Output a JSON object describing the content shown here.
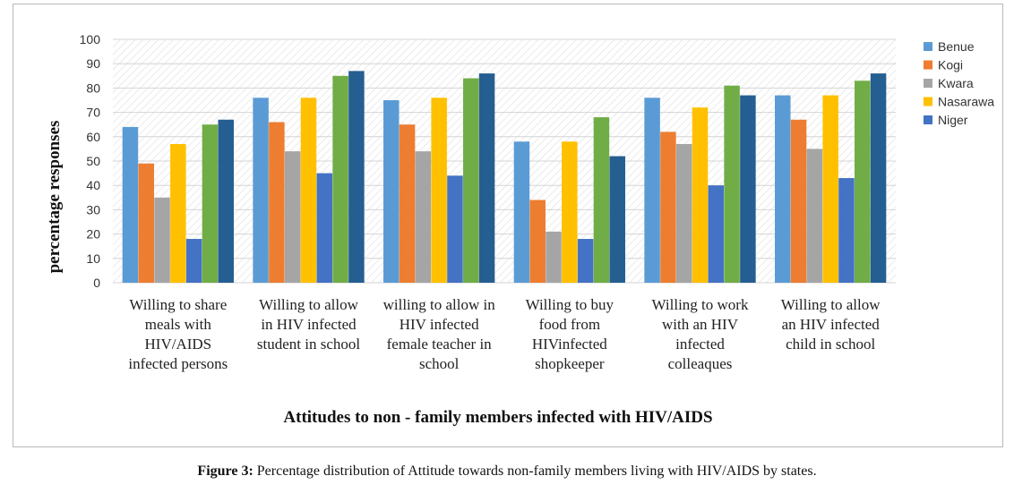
{
  "chart_data": {
    "type": "bar",
    "title": "",
    "xlabel": "Attitudes to non - family members infected with HIV/AIDS",
    "ylabel": "percentage responses",
    "ylim": [
      0,
      100
    ],
    "yticks": [
      0,
      10,
      20,
      30,
      40,
      50,
      60,
      70,
      80,
      90,
      100
    ],
    "grid": true,
    "legend_position": "right",
    "categories": [
      [
        "Willing to share",
        "meals with",
        "HIV/AIDS",
        "infected persons"
      ],
      [
        "Willing to allow",
        "in HIV infected",
        "student in school"
      ],
      [
        "willing to allow in",
        "HIV infected",
        "female teacher in",
        "school"
      ],
      [
        "Willing to buy",
        "food from",
        "HIVinfected",
        "shopkeeper"
      ],
      [
        "Willing to work",
        "with an HIV",
        "infected",
        "colleaques"
      ],
      [
        "Willing to allow",
        "an HIV infected",
        "child in school"
      ]
    ],
    "series": [
      {
        "name": "Benue",
        "color": "#5b9bd5",
        "legend": true,
        "values": [
          64,
          76,
          75,
          58,
          76,
          77
        ]
      },
      {
        "name": "Kogi",
        "color": "#ed7d31",
        "legend": true,
        "values": [
          49,
          66,
          65,
          34,
          62,
          67
        ]
      },
      {
        "name": "Kwara",
        "color": "#a5a5a5",
        "legend": true,
        "values": [
          35,
          54,
          54,
          21,
          57,
          55
        ]
      },
      {
        "name": "Nasarawa",
        "color": "#ffc000",
        "legend": true,
        "values": [
          57,
          76,
          76,
          58,
          72,
          77
        ]
      },
      {
        "name": "Niger",
        "color": "#4472c4",
        "legend": true,
        "values": [
          18,
          45,
          44,
          18,
          40,
          43
        ]
      },
      {
        "name": "",
        "color": "#70ad47",
        "legend": false,
        "values": [
          65,
          85,
          84,
          68,
          81,
          83
        ]
      },
      {
        "name": "",
        "color": "#255e91",
        "legend": false,
        "values": [
          67,
          87,
          86,
          52,
          77,
          86
        ]
      }
    ]
  },
  "caption": {
    "label": "Figure 3:",
    "text": " Percentage distribution of Attitude towards non-family members living with HIV/AIDS by states."
  }
}
